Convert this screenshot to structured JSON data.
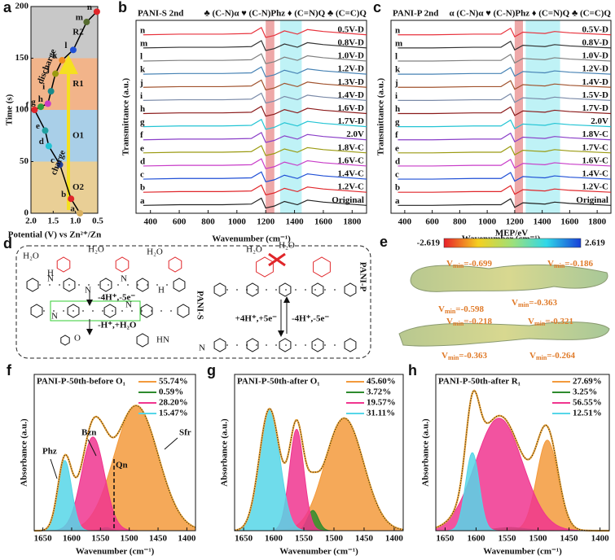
{
  "chart_data": [
    {
      "panel": "a",
      "type": "line",
      "x_label": "Potential (V) vs Zn²⁺/Zn",
      "y_label": "Time (s)",
      "x": [
        0.9,
        1.1,
        1.35,
        1.6,
        1.68,
        1.92,
        1.78,
        1.62,
        1.55,
        1.45,
        1.3,
        1.05,
        0.75,
        0.52
      ],
      "values": [
        0,
        14,
        47,
        65,
        80,
        100,
        103,
        106,
        118,
        135,
        148,
        158,
        185,
        195
      ],
      "point_labels": [
        "a",
        "b",
        "c",
        "d",
        "e",
        "f",
        "g",
        "h",
        "i",
        "j",
        "k",
        "l",
        "m",
        "n"
      ],
      "point_colors": [
        "#d8b060",
        "#e0262a",
        "#1f3f9a",
        "#22c4d4",
        "#20a0a0",
        "#e0262a",
        "#2e9b3e",
        "#c83cc8",
        "#1a8a8a",
        "#9a9a10",
        "#f08a20",
        "#1f4fd6",
        "#556b2f",
        "#e0262a"
      ],
      "line_color": "#000000",
      "xlim": [
        2,
        0.5
      ],
      "xticks": [
        {
          "value": 2,
          "label": "2.0"
        },
        1.5,
        {
          "value": 1,
          "label": "1.0"
        },
        0.5
      ],
      "ylim": [
        0,
        200
      ],
      "yticks": [
        0,
        50,
        100,
        150,
        200
      ],
      "regions": [
        {
          "range": [
            0,
            50
          ],
          "color": "#e9cf96",
          "label": "O2"
        },
        {
          "range": [
            50,
            100
          ],
          "color": "#a9cfe8",
          "label": "O1"
        },
        {
          "range": [
            100,
            150
          ],
          "color": "#f2b48a",
          "label": "R1"
        },
        {
          "range": [
            150,
            200
          ],
          "color": "#c8c8c8",
          "label": "R2"
        }
      ],
      "annotations": [
        "discharge",
        "charge"
      ]
    },
    {
      "panel": "b",
      "type": "spectra",
      "title": "PANI-S 2nd",
      "header": "♣ (C-N)α ♥ (C-N)Phz ♦ (C=N)Q ♣ (C=C)Q",
      "x_label": "Wavenumber  (cm⁻¹)",
      "y_label": "Transmittance (a.u.)",
      "xlim": [
        300,
        1900
      ],
      "xticks": [
        400,
        600,
        800,
        1000,
        1200,
        1400,
        1600,
        1800
      ],
      "ylim": [
        -0.3,
        14.4
      ],
      "bands": [
        {
          "range": [
            1200,
            1260
          ],
          "color": "#e06060"
        },
        {
          "range": [
            1300,
            1450
          ],
          "color": "#8ae8ee"
        }
      ],
      "x": [
        350,
        600,
        900,
        1100,
        1170,
        1200,
        1260,
        1330,
        1420,
        1490,
        1600,
        1900
      ],
      "series": [
        {
          "tag": "a",
          "name": "Original",
          "color": "#222222",
          "values": [
            0.3,
            0.35,
            0.35,
            0.4,
            0.85,
            0.1,
            0.25,
            0.6,
            0.35,
            0.7,
            0.55,
            0.3
          ]
        },
        {
          "tag": "b",
          "name": "1.2V-C",
          "color": "#e0262a",
          "values": [
            1.3,
            1.35,
            1.35,
            1.4,
            1.85,
            1.1,
            1.25,
            1.6,
            1.35,
            1.7,
            1.55,
            1.3
          ]
        },
        {
          "tag": "c",
          "name": "1.4V-C",
          "color": "#1f4fd6",
          "values": [
            2.3,
            2.35,
            2.35,
            2.4,
            2.85,
            2.1,
            2.25,
            2.6,
            2.35,
            2.7,
            2.55,
            2.3
          ]
        },
        {
          "tag": "d",
          "name": "1.6V-C",
          "color": "#c83cc8",
          "values": [
            3.3,
            3.35,
            3.35,
            3.4,
            3.85,
            3.1,
            3.25,
            3.6,
            3.35,
            3.7,
            3.55,
            3.3
          ]
        },
        {
          "tag": "e",
          "name": "1.8V-C",
          "color": "#9a9a10",
          "values": [
            4.3,
            4.35,
            4.35,
            4.4,
            4.85,
            4.1,
            4.25,
            4.6,
            4.35,
            4.7,
            4.55,
            4.3
          ]
        },
        {
          "tag": "f",
          "name": "2.0V",
          "color": "#8a3ec8",
          "values": [
            5.3,
            5.35,
            5.35,
            5.4,
            5.85,
            5.1,
            5.25,
            5.6,
            5.35,
            5.7,
            5.55,
            5.3
          ]
        },
        {
          "tag": "g",
          "name": "1.7V-D",
          "color": "#22c4d4",
          "values": [
            6.3,
            6.35,
            6.35,
            6.4,
            6.85,
            6.1,
            6.25,
            6.6,
            6.35,
            6.7,
            6.55,
            6.3
          ]
        },
        {
          "tag": "h",
          "name": "1.6V-D",
          "color": "#8b1a1a",
          "values": [
            7.3,
            7.35,
            7.35,
            7.4,
            7.85,
            7.1,
            7.25,
            7.6,
            7.35,
            7.7,
            7.55,
            7.3
          ]
        },
        {
          "tag": "i",
          "name": "1.4V-D",
          "color": "#7a8aa8",
          "values": [
            8.3,
            8.35,
            8.35,
            8.4,
            8.85,
            8.1,
            8.25,
            8.6,
            8.35,
            8.7,
            8.55,
            8.3
          ]
        },
        {
          "tag": "j",
          "name": "1.3V-D",
          "color": "#a0522d",
          "values": [
            9.3,
            9.35,
            9.35,
            9.4,
            9.85,
            9.1,
            9.25,
            9.6,
            9.35,
            9.7,
            9.55,
            9.3
          ]
        },
        {
          "tag": "k",
          "name": "1.2V-D",
          "color": "#4682b4",
          "values": [
            10.3,
            10.35,
            10.35,
            10.4,
            10.85,
            10.1,
            10.25,
            10.6,
            10.35,
            10.7,
            10.55,
            10.3
          ]
        },
        {
          "tag": "l",
          "name": "1.0V-D",
          "color": "#808080",
          "values": [
            11.3,
            11.35,
            11.35,
            11.4,
            11.85,
            11.1,
            11.25,
            11.6,
            11.35,
            11.7,
            11.55,
            11.3
          ]
        },
        {
          "tag": "m",
          "name": "0.8V-D",
          "color": "#333333",
          "values": [
            12.3,
            12.35,
            12.35,
            12.4,
            12.85,
            12.1,
            12.25,
            12.6,
            12.35,
            12.7,
            12.55,
            12.3
          ]
        },
        {
          "tag": "n",
          "name": "0.5V-D",
          "color": "#e8323c",
          "values": [
            13.3,
            13.35,
            13.35,
            13.4,
            13.85,
            13.1,
            13.25,
            13.6,
            13.35,
            13.7,
            13.55,
            13.3
          ]
        }
      ]
    },
    {
      "panel": "c",
      "type": "spectra",
      "title": "PANI-P 2nd",
      "header": "α (C-N)α ♥ (C-N)Phz ♦ (C=N)Q ♣ (C=C)Q",
      "x_label": "Wavenumber  (cm⁻¹)",
      "y_label": "Transmittance (a.u.)",
      "xlim": [
        300,
        1900
      ],
      "xticks": [
        400,
        600,
        800,
        1000,
        1200,
        1400,
        1600,
        1800
      ],
      "ylim": [
        -0.3,
        14.4
      ],
      "bands": [
        {
          "range": [
            1200,
            1260
          ],
          "color": "#e06060"
        },
        {
          "range": [
            1280,
            1530
          ],
          "color": "#8ae8ee"
        }
      ],
      "x": [
        350,
        600,
        900,
        1100,
        1170,
        1200,
        1260,
        1330,
        1420,
        1490,
        1600,
        1900
      ],
      "series": [
        {
          "tag": "a",
          "name": "Original",
          "color": "#222222",
          "values": [
            0.3,
            0.3,
            0.35,
            0.35,
            0.8,
            0.15,
            0.5,
            0.45,
            0.4,
            0.55,
            0.45,
            0.3
          ]
        },
        {
          "tag": "b",
          "name": "1.2V-C",
          "color": "#e0262a",
          "values": [
            1.3,
            1.3,
            1.35,
            1.35,
            1.8,
            1.15,
            1.5,
            1.45,
            1.4,
            1.55,
            1.45,
            1.3
          ]
        },
        {
          "tag": "c",
          "name": "1.4V-C",
          "color": "#1f4fd6",
          "values": [
            2.3,
            2.3,
            2.35,
            2.35,
            2.8,
            2.15,
            2.5,
            2.45,
            2.4,
            2.55,
            2.45,
            2.3
          ]
        },
        {
          "tag": "d",
          "name": "1.6V-C",
          "color": "#c83cc8",
          "values": [
            3.3,
            3.3,
            3.35,
            3.35,
            3.8,
            3.15,
            3.5,
            3.45,
            3.4,
            3.55,
            3.45,
            3.3
          ]
        },
        {
          "tag": "e",
          "name": "1.7V-C",
          "color": "#9a9a10",
          "values": [
            4.3,
            4.3,
            4.35,
            4.35,
            4.8,
            4.15,
            4.5,
            4.45,
            4.4,
            4.55,
            4.45,
            4.3
          ]
        },
        {
          "tag": "f",
          "name": "1.8V-C",
          "color": "#8a3ec8",
          "values": [
            5.3,
            5.3,
            5.35,
            5.35,
            5.8,
            5.15,
            5.5,
            5.45,
            5.4,
            5.55,
            5.45,
            5.3
          ]
        },
        {
          "tag": "g",
          "name": "2.0V",
          "color": "#22c4d4",
          "values": [
            6.3,
            6.3,
            6.35,
            6.35,
            6.8,
            6.15,
            6.5,
            6.45,
            6.4,
            6.55,
            6.45,
            6.3
          ]
        },
        {
          "tag": "h",
          "name": "1.7V-D",
          "color": "#8b1a1a",
          "values": [
            7.3,
            7.3,
            7.35,
            7.35,
            7.8,
            7.15,
            7.5,
            7.45,
            7.4,
            7.55,
            7.45,
            7.3
          ]
        },
        {
          "tag": "i",
          "name": "1.5V-D",
          "color": "#7a8aa8",
          "values": [
            8.3,
            8.3,
            8.35,
            8.35,
            8.8,
            8.15,
            8.5,
            8.45,
            8.4,
            8.55,
            8.45,
            8.3
          ]
        },
        {
          "tag": "j",
          "name": "1.4V-D",
          "color": "#a0522d",
          "values": [
            9.3,
            9.3,
            9.35,
            9.35,
            9.8,
            9.15,
            9.5,
            9.45,
            9.4,
            9.55,
            9.45,
            9.3
          ]
        },
        {
          "tag": "k",
          "name": "1.2V-D",
          "color": "#4682b4",
          "values": [
            10.3,
            10.3,
            10.35,
            10.35,
            10.8,
            10.15,
            10.5,
            10.45,
            10.4,
            10.55,
            10.45,
            10.3
          ]
        },
        {
          "tag": "l",
          "name": "1.0V-D",
          "color": "#808080",
          "values": [
            11.3,
            11.3,
            11.35,
            11.35,
            11.8,
            11.15,
            11.5,
            11.45,
            11.4,
            11.55,
            11.45,
            11.3
          ]
        },
        {
          "tag": "m",
          "name": "0.8V-D",
          "color": "#333333",
          "values": [
            12.3,
            12.3,
            12.35,
            12.35,
            12.8,
            12.15,
            12.5,
            12.45,
            12.4,
            12.55,
            12.45,
            12.3
          ]
        },
        {
          "tag": "n",
          "name": "0.5V-D",
          "color": "#e8323c",
          "values": [
            13.3,
            13.3,
            13.35,
            13.35,
            13.8,
            13.15,
            13.5,
            13.45,
            13.4,
            13.55,
            13.45,
            13.3
          ]
        }
      ]
    },
    {
      "panel": "f",
      "type": "gaussian-fit",
      "title": "PANI-P-50th-before O₁",
      "x_label": "Wavenumber (cm⁻¹)",
      "y_label": "Absorbance (a.u.)",
      "xlim": [
        1665,
        1385
      ],
      "xticks": [
        1650,
        1600,
        1550,
        1500,
        1450,
        1400
      ],
      "ylim": [
        0,
        1
      ],
      "fit_color": "#e8a33a",
      "annotations": [
        "Phz",
        "Bzn",
        "Qn",
        "Sfr"
      ],
      "series": [
        {
          "name": "55.74%",
          "color": "#f39a3c",
          "center": 1488,
          "width": 38,
          "height": 0.8
        },
        {
          "name": "0.59%",
          "color": "#2e8b2e",
          "center": 1540,
          "width": 8,
          "height": 0.02
        },
        {
          "name": "28.20%",
          "color": "#f0358f",
          "center": 1563,
          "width": 20,
          "height": 0.6
        },
        {
          "name": "15.47%",
          "color": "#56d6e8",
          "center": 1612,
          "width": 12,
          "height": 0.45
        }
      ]
    },
    {
      "panel": "g",
      "type": "gaussian-fit",
      "title": "PANI-P-50th-after O₁",
      "x_label": "Wavenumber (cm⁻¹)",
      "y_label": "Absorbance (a.u.)",
      "xlim": [
        1665,
        1385
      ],
      "xticks": [
        1650,
        1600,
        1550,
        1500,
        1450,
        1400
      ],
      "ylim": [
        0,
        1
      ],
      "fit_color": "#e8a33a",
      "series": [
        {
          "name": "45.60%",
          "color": "#f39a3c",
          "center": 1483,
          "width": 32,
          "height": 0.72
        },
        {
          "name": "3.72%",
          "color": "#2e8b2e",
          "center": 1535,
          "width": 9,
          "height": 0.13
        },
        {
          "name": "19.57%",
          "color": "#f0358f",
          "center": 1562,
          "width": 12,
          "height": 0.65
        },
        {
          "name": "31.11%",
          "color": "#56d6e8",
          "center": 1607,
          "width": 17,
          "height": 0.78
        }
      ]
    },
    {
      "panel": "h",
      "type": "gaussian-fit",
      "title": "PANI-P-50th-after R₁",
      "x_label": "Wavenumber (cm⁻¹)",
      "y_label": "Absorbance (a.u.)",
      "xlim": [
        1665,
        1385
      ],
      "xticks": [
        1650,
        1600,
        1550,
        1500,
        1450,
        1400
      ],
      "ylim": [
        0,
        1
      ],
      "fit_color": "#e8a33a",
      "series": [
        {
          "name": "27.69%",
          "color": "#f39a3c",
          "center": 1485,
          "width": 17,
          "height": 0.58
        },
        {
          "name": "3.25%",
          "color": "#2e8b2e",
          "center": 1545,
          "width": 25,
          "height": 0.02
        },
        {
          "name": "56.55%",
          "color": "#f0358f",
          "center": 1563,
          "width": 38,
          "height": 0.72
        },
        {
          "name": "12.51%",
          "color": "#56d6e8",
          "center": 1606,
          "width": 11,
          "height": 0.5
        }
      ]
    }
  ],
  "diagram": {
    "panel": "d",
    "water": [
      "H₂O",
      "H₂O",
      "H₂O",
      "H₂O",
      "H₂O"
    ],
    "steps": [
      "-4H⁺,-5e⁻",
      "-H⁺,+H₂O",
      "+4H⁺,+5e⁻",
      "-4H⁺,-5e⁻"
    ],
    "labels": [
      "PANI-S",
      "PANI-P"
    ],
    "atoms": [
      "N",
      "H",
      "N",
      "N",
      "H",
      "N",
      "N",
      "N",
      "HN",
      "O"
    ]
  },
  "mep": {
    "panel": "e",
    "colorbar": {
      "label": "MEP/eV",
      "min": -2.619,
      "max": 2.619
    },
    "vmin_symbol": "V",
    "vmin_subscript": "min",
    "vmin_values": [
      "=-0.699",
      "=-0.186",
      "=-0.598",
      "=-0.363",
      "=-0.218",
      "=-0.321",
      "=-0.363",
      "=-0.264"
    ]
  }
}
